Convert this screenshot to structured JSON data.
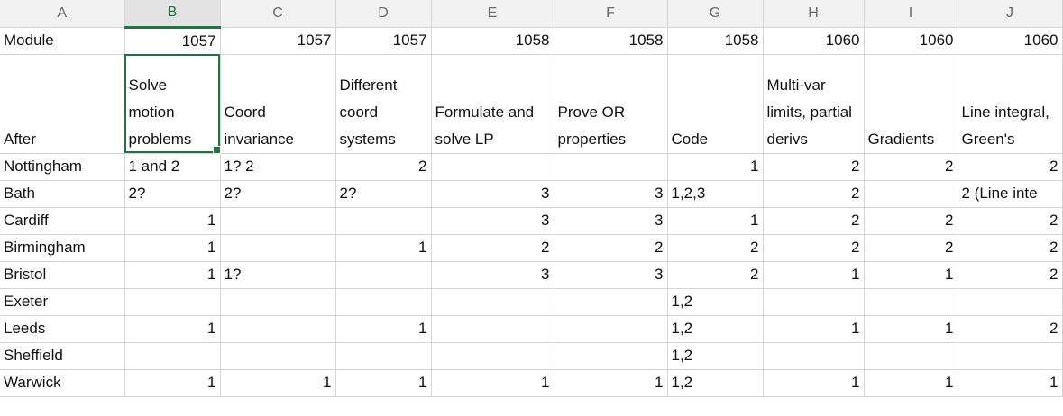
{
  "columns": [
    "A",
    "B",
    "C",
    "D",
    "E",
    "F",
    "G",
    "H",
    "I",
    "J"
  ],
  "module_row": {
    "label": "Module",
    "values": [
      "1057",
      "1057",
      "1057",
      "1058",
      "1058",
      "1058",
      "1060",
      "1060",
      "1060"
    ]
  },
  "header_row": {
    "label": "After",
    "cells": [
      "Solve motion problems",
      "Coord invariance",
      "Different coord systems",
      "Formulate and solve LP",
      "Prove OR properties",
      "Code",
      "Multi-var limits, partial derivs",
      "Gradients",
      "Line integral, Green's"
    ]
  },
  "rows": [
    {
      "name": "Nottingham",
      "cells": [
        "1 and 2",
        "1? 2",
        "2",
        "",
        "",
        "1",
        "2",
        "2",
        "2"
      ]
    },
    {
      "name": "Bath",
      "cells": [
        "2?",
        "2?",
        "2?",
        "3",
        "3",
        "1,2,3",
        "2",
        "",
        "2 (Line inte"
      ]
    },
    {
      "name": "Cardiff",
      "cells": [
        "1",
        "",
        "",
        "3",
        "3",
        "1",
        "2",
        "2",
        "2"
      ]
    },
    {
      "name": "Birmingham",
      "cells": [
        "1",
        "",
        "1",
        "2",
        "2",
        "2",
        "2",
        "2",
        "2"
      ]
    },
    {
      "name": "Bristol",
      "cells": [
        "1",
        "1?",
        "",
        "3",
        "3",
        "2",
        "1",
        "1",
        "2"
      ]
    },
    {
      "name": "Exeter",
      "cells": [
        "",
        "",
        "",
        "",
        "",
        "1,2",
        "",
        "",
        ""
      ]
    },
    {
      "name": "Leeds",
      "cells": [
        "1",
        "",
        "1",
        "",
        "",
        "1,2",
        "1",
        "1",
        "2"
      ]
    },
    {
      "name": "Sheffield",
      "cells": [
        "",
        "",
        "",
        "",
        "",
        "1,2",
        "",
        "",
        ""
      ]
    },
    {
      "name": "Warwick",
      "cells": [
        "1",
        "1",
        "1",
        "1",
        "1",
        "1,2",
        "1",
        "1",
        "1"
      ]
    }
  ],
  "selected_column": "B",
  "colors": {
    "accent": "#217346",
    "grid": "#d4d4d4",
    "header_bg": "#f2f2f2"
  }
}
